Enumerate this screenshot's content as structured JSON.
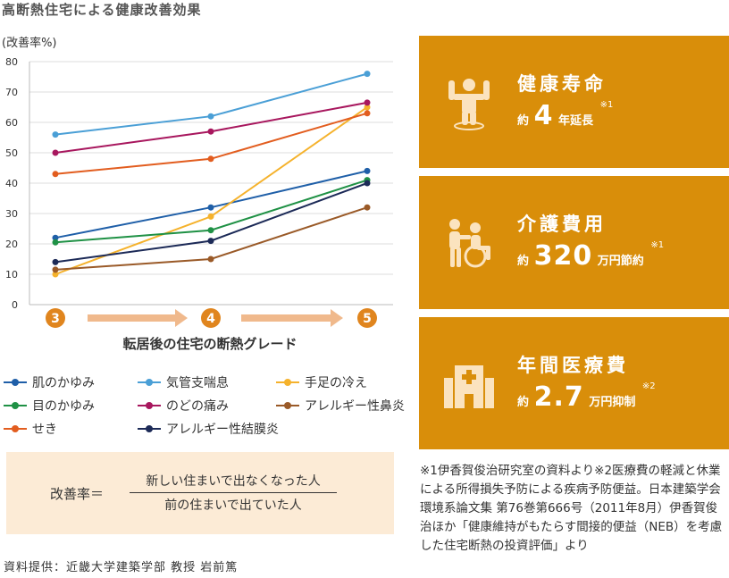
{
  "title": "高断熱住宅による健康改善効果",
  "chart_data": {
    "type": "line",
    "ylabel": "(改善率%)",
    "xlabel": "転居後の住宅の断熱グレード",
    "categories": [
      "3",
      "4",
      "5"
    ],
    "ylim": [
      0,
      80
    ],
    "yticks": [
      "0",
      "10",
      "20",
      "30",
      "40",
      "50",
      "60",
      "70",
      "80"
    ],
    "grid": "horizontal",
    "legend_placement": "bottom",
    "series": [
      {
        "name": "肌のかゆみ",
        "color": "#1f5fa8",
        "values": [
          22,
          32,
          44
        ]
      },
      {
        "name": "気管支喘息",
        "color": "#4a9fd6",
        "values": [
          56,
          62,
          76
        ]
      },
      {
        "name": "手足の冷え",
        "color": "#f5b22c",
        "values": [
          10,
          29,
          65
        ]
      },
      {
        "name": "目のかゆみ",
        "color": "#1f9145",
        "values": [
          20.5,
          24.5,
          41
        ]
      },
      {
        "name": "のどの痛み",
        "color": "#a8175e",
        "values": [
          50,
          57,
          66.5
        ]
      },
      {
        "name": "アレルギー性鼻炎",
        "color": "#9a5a28",
        "values": [
          11.5,
          15,
          32
        ]
      },
      {
        "name": "せき",
        "color": "#e25d1f",
        "values": [
          43,
          48,
          63
        ]
      },
      {
        "name": "アレルギー性結膜炎",
        "color": "#1c2a57",
        "values": [
          14,
          21,
          40
        ]
      }
    ],
    "grade_marker_color": "#e0851e",
    "arrow_color": "#f0b98c"
  },
  "formula": {
    "lhs": "改善率＝",
    "numerator": "新しい住まいで出なくなった人",
    "denominator": "前の住まいで出ていた人"
  },
  "source": "資料提供：近畿大学建築学部 教授 岩前篤",
  "cards": [
    {
      "title": "健康寿命",
      "prefix": "約",
      "value": "4",
      "suffix": "年延長",
      "note": "※1",
      "icon": "person-arms-up-icon"
    },
    {
      "title": "介護費用",
      "prefix": "約",
      "value": "320",
      "suffix": "万円節約",
      "note": "※1",
      "icon": "caregiver-wheelchair-icon"
    },
    {
      "title": "年間医療費",
      "prefix": "約",
      "value": "2.7",
      "suffix": "万円抑制",
      "note": "※2",
      "icon": "hospital-icon"
    }
  ],
  "footnote": "※1伊香賀俊治研究室の資料より※2医療費の軽減と休業による所得損失予防による疾病予防便益。日本建築学会環境系論文集 第76巻第666号（2011年8月）伊香賀俊治ほか「健康維持がもたらす間接的便益（NEB）を考慮した住宅断熱の投資評価」より",
  "colors": {
    "card_bg": "#d98e0a",
    "formula_bg": "#fcebd6"
  }
}
